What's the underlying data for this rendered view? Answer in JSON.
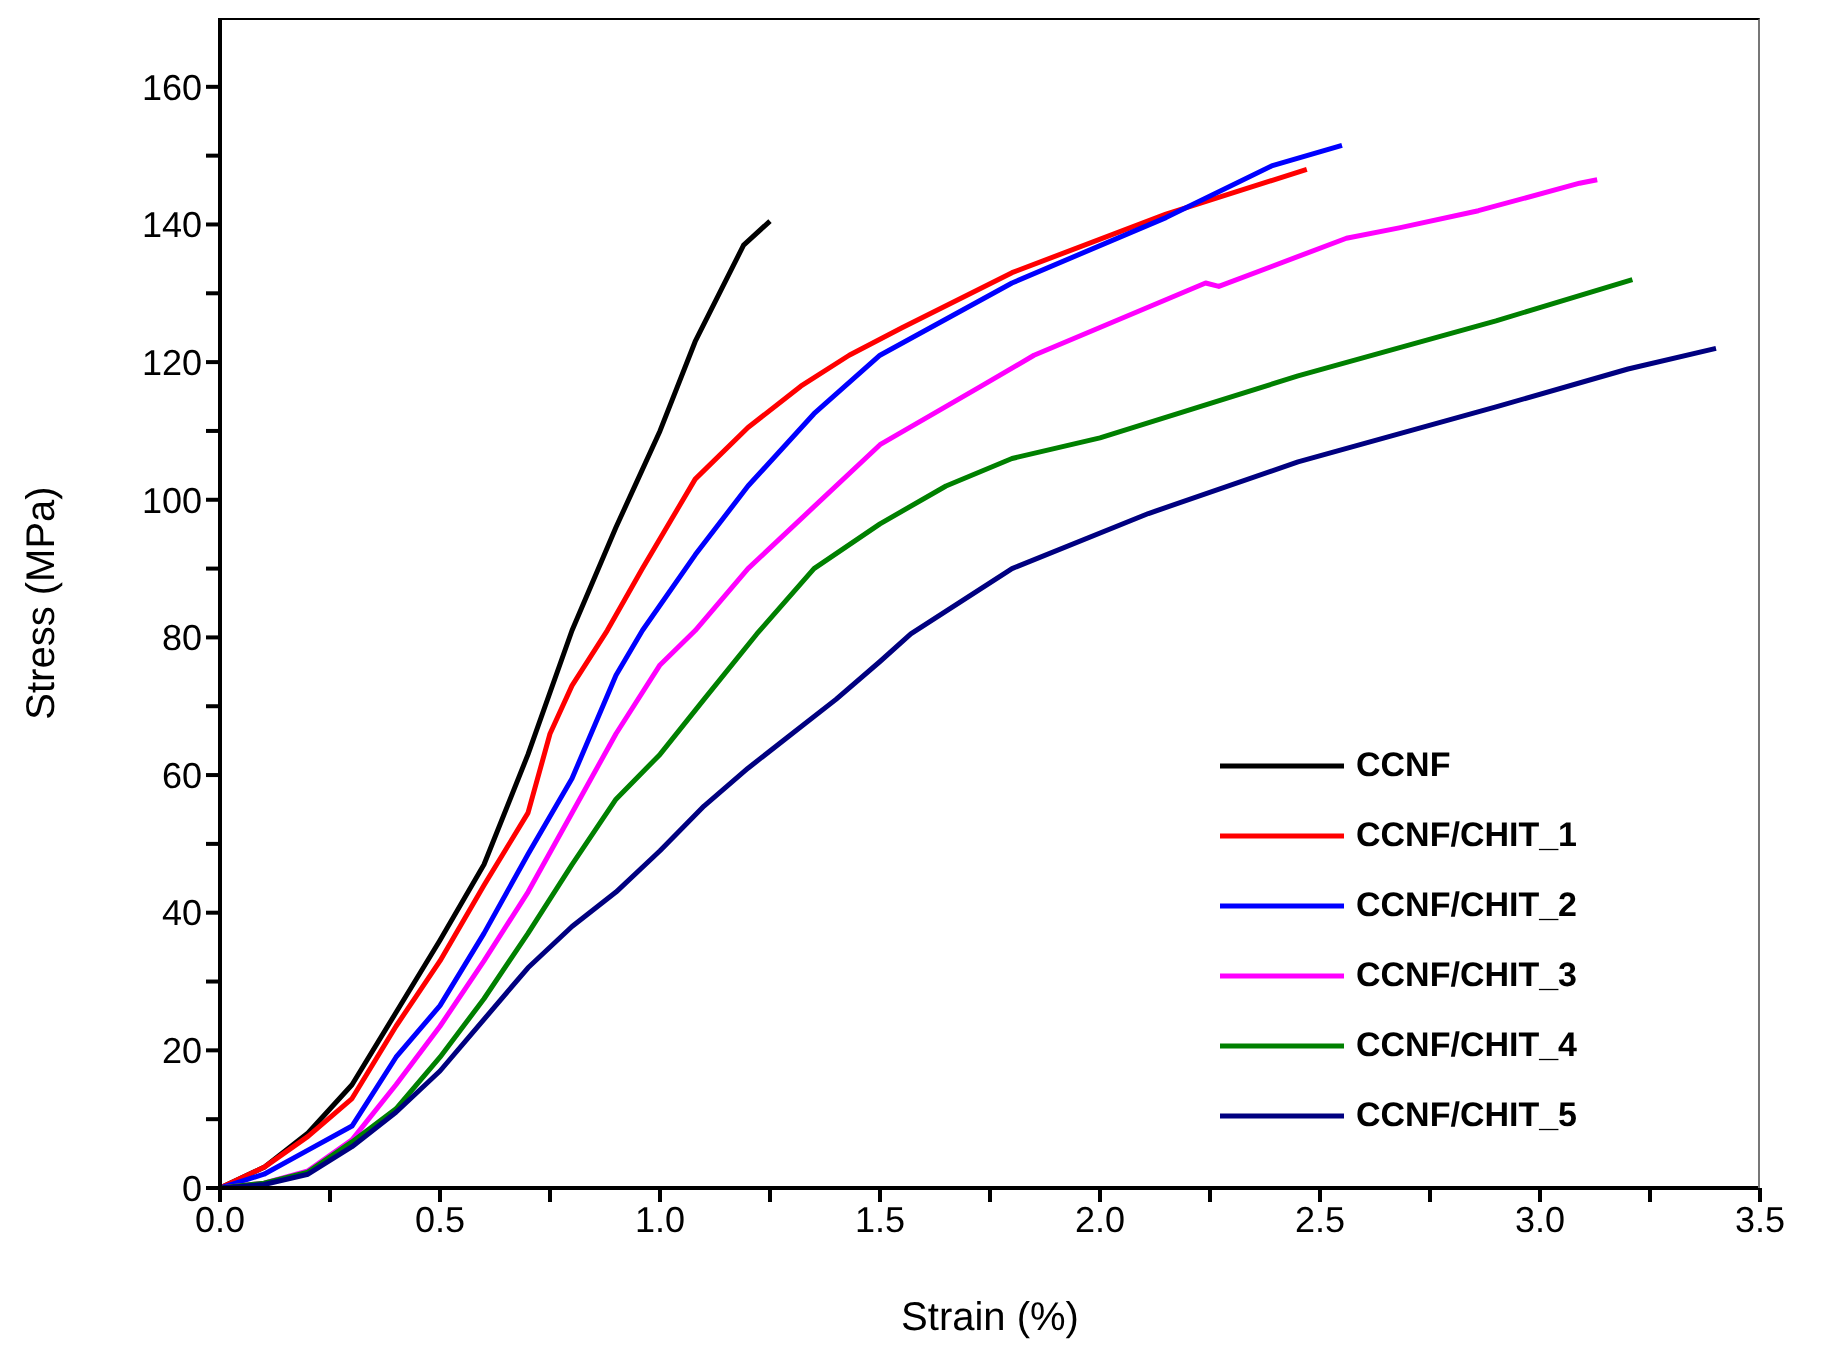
{
  "chart_data": {
    "type": "line",
    "xlabel": "Strain (%)",
    "ylabel": "Stress (MPa)",
    "xlim": [
      0,
      3.5
    ],
    "ylim": [
      0,
      170
    ],
    "xticks": [
      {
        "value": 0,
        "label": "0.0"
      },
      {
        "value": 0.25,
        "label": null
      },
      {
        "value": 0.5,
        "label": "0.5"
      },
      {
        "value": 0.75,
        "label": null
      },
      {
        "value": 1,
        "label": "1.0"
      },
      {
        "value": 1.25,
        "label": null
      },
      {
        "value": 1.5,
        "label": "1.5"
      },
      {
        "value": 1.75,
        "label": null
      },
      {
        "value": 2,
        "label": "2.0"
      },
      {
        "value": 2.25,
        "label": null
      },
      {
        "value": 2.5,
        "label": "2.5"
      },
      {
        "value": 2.75,
        "label": null
      },
      {
        "value": 3,
        "label": "3.0"
      },
      {
        "value": 3.25,
        "label": null
      },
      {
        "value": 3.5,
        "label": "3.5"
      }
    ],
    "yticks": [
      0,
      {
        "value": 10,
        "label": null
      },
      20,
      {
        "value": 30,
        "label": null
      },
      40,
      {
        "value": 50,
        "label": null
      },
      60,
      {
        "value": 70,
        "label": null
      },
      80,
      {
        "value": 90,
        "label": null
      },
      100,
      {
        "value": 110,
        "label": null
      },
      120,
      {
        "value": 130,
        "label": null
      },
      140,
      {
        "value": 150,
        "label": null
      },
      160
    ],
    "grid": false,
    "legend": "bottom right",
    "marker": "none",
    "line_style": "solid",
    "series": [
      {
        "name": "CCNF",
        "color": "#000000",
        "x": [
          0,
          0.1,
          0.2,
          0.3,
          0.4,
          0.5,
          0.6,
          0.7,
          0.8,
          0.9,
          0.95,
          1.0,
          1.08,
          1.19,
          1.25
        ],
        "values": [
          0,
          3,
          8,
          15,
          25.5,
          36,
          47,
          63,
          81,
          96,
          103,
          110,
          123,
          137,
          140.5
        ]
      },
      {
        "name": "CCNF/CHIT_1",
        "color": "#ff0000",
        "x": [
          0,
          0.1,
          0.2,
          0.3,
          0.4,
          0.5,
          0.6,
          0.7,
          0.75,
          0.8,
          0.88,
          0.96,
          1.08,
          1.2,
          1.32,
          1.43,
          1.55,
          1.8,
          2.15,
          2.47
        ],
        "values": [
          0,
          3,
          7.5,
          13,
          23.5,
          33,
          44,
          54.5,
          66,
          73,
          81,
          90,
          103,
          110.5,
          116.5,
          121,
          125,
          133,
          141.5,
          148
        ]
      },
      {
        "name": "CCNF/CHIT_2",
        "color": "#0000ff",
        "x": [
          0,
          0.1,
          0.2,
          0.3,
          0.4,
          0.5,
          0.6,
          0.7,
          0.8,
          0.9,
          0.96,
          1.08,
          1.2,
          1.35,
          1.5,
          1.8,
          2.15,
          2.39,
          2.55
        ],
        "values": [
          0,
          2,
          5.5,
          9,
          19,
          26.5,
          37,
          48.5,
          59.5,
          74.5,
          81,
          92,
          102,
          112.5,
          121,
          131.5,
          141,
          148.5,
          151.5
        ]
      },
      {
        "name": "CCNF/CHIT_3",
        "color": "#ff00ff",
        "x": [
          0,
          0.1,
          0.2,
          0.3,
          0.4,
          0.5,
          0.6,
          0.7,
          0.8,
          0.9,
          1.0,
          1.08,
          1.2,
          1.35,
          1.5,
          1.73,
          1.85,
          2.24,
          2.27,
          2.56,
          2.68,
          2.86,
          3.09,
          3.13
        ],
        "values": [
          0,
          0.7,
          2.5,
          7,
          15,
          23.5,
          33,
          43,
          54.5,
          66,
          76,
          81,
          90,
          99,
          108,
          116.5,
          121,
          131.5,
          131,
          138,
          139.5,
          142,
          146,
          146.5
        ]
      },
      {
        "name": "CCNF/CHIT_4",
        "color": "#008000",
        "x": [
          0,
          0.1,
          0.2,
          0.3,
          0.4,
          0.5,
          0.6,
          0.7,
          0.8,
          0.9,
          1.0,
          1.1,
          1.22,
          1.35,
          1.5,
          1.65,
          1.8,
          2.0,
          2.45,
          2.9,
          3.21
        ],
        "values": [
          0,
          0.7,
          2.3,
          6.7,
          11.5,
          19,
          27.5,
          37,
          47,
          56.5,
          63,
          71,
          80.5,
          90,
          96.5,
          102,
          106,
          109,
          118,
          126,
          132
        ]
      },
      {
        "name": "CCNF/CHIT_5",
        "color": "#000080",
        "x": [
          0,
          0.1,
          0.2,
          0.3,
          0.4,
          0.5,
          0.6,
          0.7,
          0.8,
          0.9,
          1.0,
          1.1,
          1.2,
          1.3,
          1.4,
          1.5,
          1.57,
          1.8,
          2.11,
          2.45,
          2.9,
          3.2,
          3.4
        ],
        "values": [
          0,
          0.5,
          2,
          6,
          11,
          17,
          24.5,
          32,
          38,
          43,
          49,
          55.5,
          61,
          66,
          71,
          76.5,
          80.5,
          90,
          98,
          105.5,
          113.5,
          119,
          122
        ]
      }
    ]
  }
}
